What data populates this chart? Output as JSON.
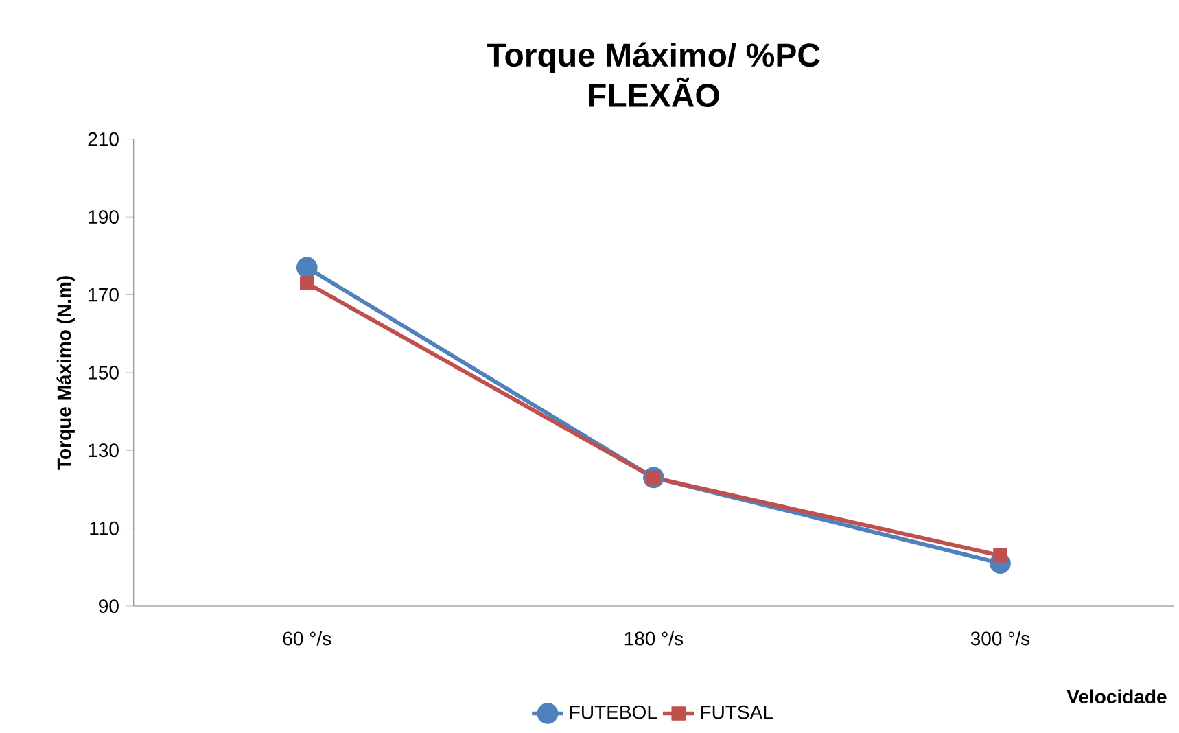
{
  "chart_data": {
    "type": "line",
    "title": "Torque Máximo/ %PC",
    "subtitle": "FLEXÃO",
    "xlabel": "Velocidade",
    "ylabel": "Torque Máximo (N.m)",
    "categories": [
      "60 °/s",
      "180 °/s",
      "300 °/s"
    ],
    "series": [
      {
        "name": "FUTEBOL",
        "color": "#4f81bd",
        "marker": "circle",
        "values": [
          177,
          123,
          101
        ]
      },
      {
        "name": "FUTSAL",
        "color": "#c0504d",
        "marker": "square",
        "values": [
          173,
          123,
          103
        ]
      }
    ],
    "ylim": [
      90,
      210
    ],
    "yticks": [
      90,
      110,
      130,
      150,
      170,
      190,
      210
    ],
    "legend": "bottom"
  }
}
